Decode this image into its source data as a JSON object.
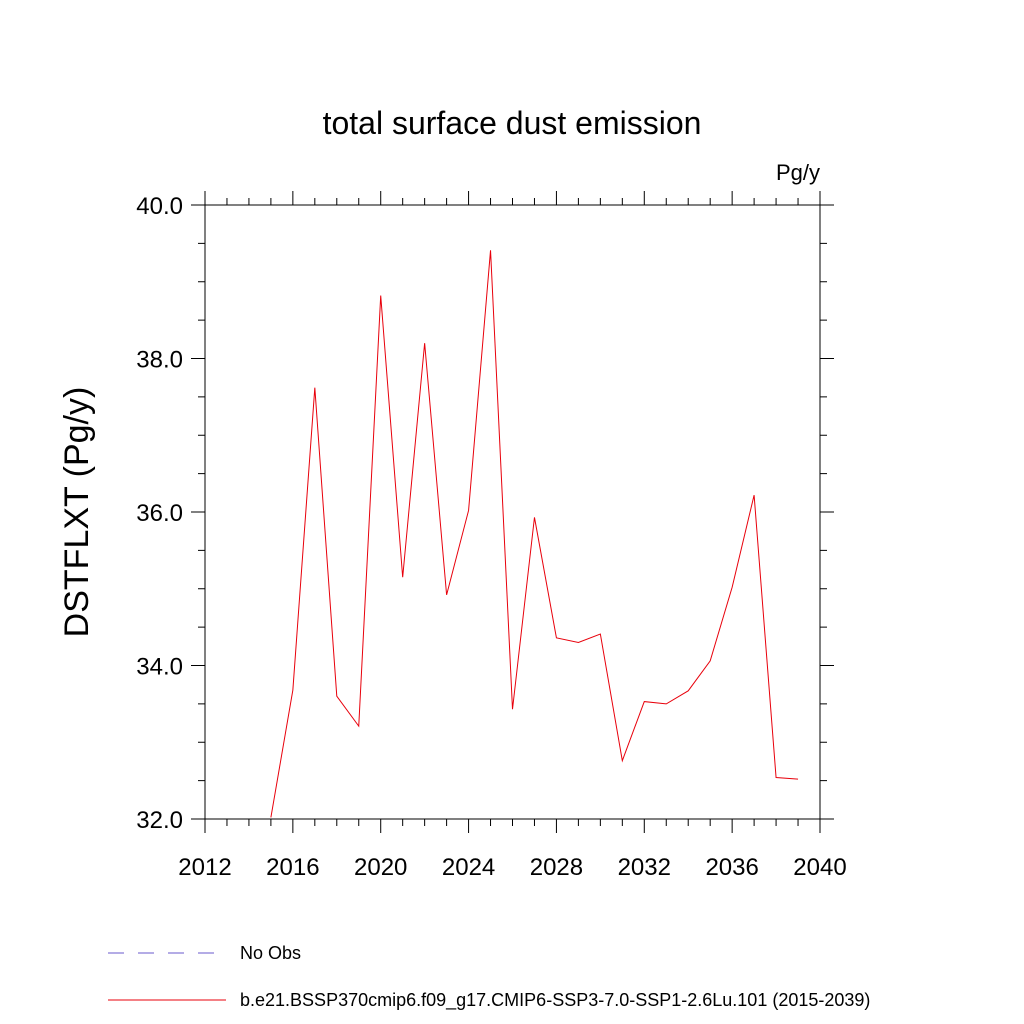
{
  "chart_data": {
    "type": "line",
    "title": "total surface dust emission",
    "units": "Pg/y",
    "ylabel": "DSTFLXT  (Pg/y)",
    "xlabel": "",
    "xlim": [
      2012,
      2040
    ],
    "ylim": [
      32.0,
      40.0
    ],
    "x_ticks": [
      2012,
      2016,
      2020,
      2024,
      2028,
      2032,
      2036,
      2040
    ],
    "x_tick_labels": [
      "2012",
      "2016",
      "2020",
      "2024",
      "2028",
      "2032",
      "2036",
      "2040"
    ],
    "y_ticks": [
      32.0,
      34.0,
      36.0,
      38.0,
      40.0
    ],
    "y_tick_labels": [
      "32.0",
      "34.0",
      "36.0",
      "38.0",
      "40.0"
    ],
    "x": [
      2015,
      2016,
      2017,
      2018,
      2019,
      2020,
      2021,
      2022,
      2023,
      2024,
      2025,
      2026,
      2027,
      2028,
      2029,
      2030,
      2031,
      2032,
      2033,
      2034,
      2035,
      2036,
      2037,
      2038,
      2039
    ],
    "series": [
      {
        "name": "b.e21.BSSP370cmip6.f09_g17.CMIP6-SSP3-7.0-SSP1-2.6Lu.101 (2015-2039)",
        "color": "#e8000b",
        "values": [
          32.02,
          33.68,
          37.62,
          33.6,
          33.21,
          38.82,
          35.15,
          38.2,
          34.92,
          36.02,
          39.41,
          33.43,
          35.93,
          34.36,
          34.3,
          34.41,
          32.76,
          33.53,
          33.5,
          33.67,
          34.06,
          35.02,
          36.22,
          32.54,
          32.52
        ]
      }
    ],
    "legend": [
      {
        "label": "No Obs",
        "style": "dashed",
        "color": "#6a5acd"
      },
      {
        "label": "b.e21.BSSP370cmip6.f09_g17.CMIP6-SSP3-7.0-SSP1-2.6Lu.101 (2015-2039)",
        "style": "solid",
        "color": "#e8000b"
      }
    ],
    "legend_position": "bottom-left"
  }
}
